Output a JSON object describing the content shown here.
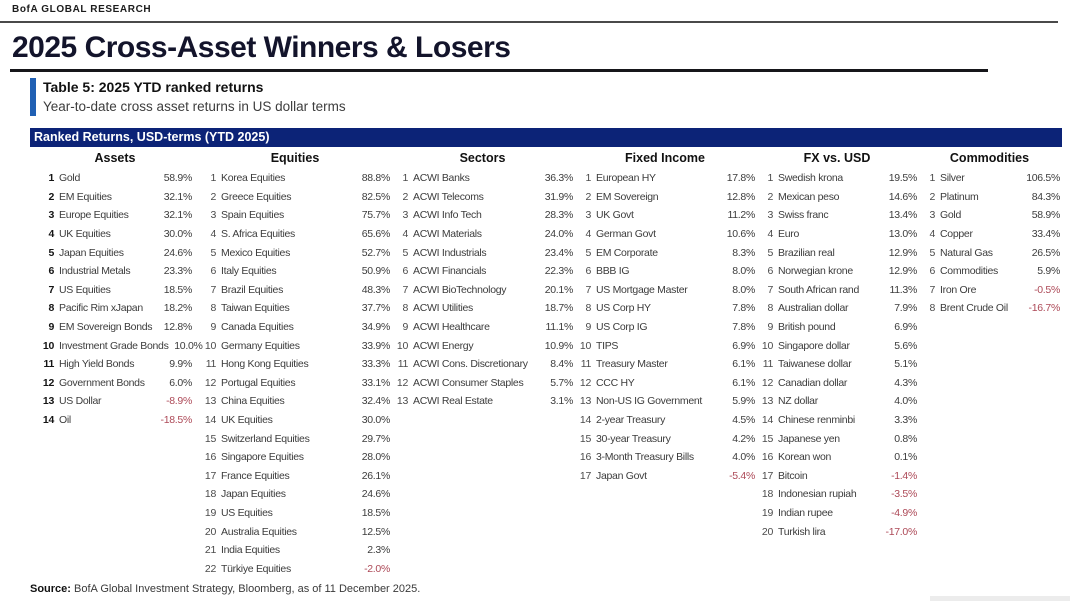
{
  "header": {
    "brand": "BofA GLOBAL RESEARCH",
    "title": "2025 Cross-Asset Winners & Losers"
  },
  "caption": {
    "title": "Table 5: 2025 YTD ranked returns",
    "subtitle": "Year-to-date cross asset returns in US dollar terms"
  },
  "table": {
    "banner": "Ranked Returns, USD-terms (YTD 2025)",
    "columns": [
      {
        "header": "Assets",
        "rows": [
          {
            "rank": 1,
            "name": "Gold",
            "value": "58.9%"
          },
          {
            "rank": 2,
            "name": "EM Equities",
            "value": "32.1%"
          },
          {
            "rank": 3,
            "name": "Europe Equities",
            "value": "32.1%"
          },
          {
            "rank": 4,
            "name": "UK Equities",
            "value": "30.0%"
          },
          {
            "rank": 5,
            "name": "Japan Equities",
            "value": "24.6%"
          },
          {
            "rank": 6,
            "name": "Industrial Metals",
            "value": "23.3%"
          },
          {
            "rank": 7,
            "name": "US Equities",
            "value": "18.5%"
          },
          {
            "rank": 8,
            "name": "Pacific Rim xJapan",
            "value": "18.2%"
          },
          {
            "rank": 9,
            "name": "EM Sovereign Bonds",
            "value": "12.8%"
          },
          {
            "rank": 10,
            "name": "Investment Grade Bonds",
            "value": "10.0%"
          },
          {
            "rank": 11,
            "name": "High Yield Bonds",
            "value": "9.9%"
          },
          {
            "rank": 12,
            "name": "Government Bonds",
            "value": "6.0%"
          },
          {
            "rank": 13,
            "name": "US Dollar",
            "value": "-8.9%"
          },
          {
            "rank": 14,
            "name": "Oil",
            "value": "-18.5%"
          }
        ]
      },
      {
        "header": "Equities",
        "rows": [
          {
            "rank": 1,
            "name": "Korea Equities",
            "value": "88.8%"
          },
          {
            "rank": 2,
            "name": "Greece Equities",
            "value": "82.5%"
          },
          {
            "rank": 3,
            "name": "Spain Equities",
            "value": "75.7%"
          },
          {
            "rank": 4,
            "name": "S. Africa Equities",
            "value": "65.6%"
          },
          {
            "rank": 5,
            "name": "Mexico Equities",
            "value": "52.7%"
          },
          {
            "rank": 6,
            "name": "Italy Equities",
            "value": "50.9%"
          },
          {
            "rank": 7,
            "name": "Brazil Equities",
            "value": "48.3%"
          },
          {
            "rank": 8,
            "name": "Taiwan Equities",
            "value": "37.7%"
          },
          {
            "rank": 9,
            "name": "Canada Equities",
            "value": "34.9%"
          },
          {
            "rank": 10,
            "name": "Germany Equities",
            "value": "33.9%"
          },
          {
            "rank": 11,
            "name": "Hong Kong Equities",
            "value": "33.3%"
          },
          {
            "rank": 12,
            "name": "Portugal Equities",
            "value": "33.1%"
          },
          {
            "rank": 13,
            "name": "China Equities",
            "value": "32.4%"
          },
          {
            "rank": 14,
            "name": "UK Equities",
            "value": "30.0%"
          },
          {
            "rank": 15,
            "name": "Switzerland Equities",
            "value": "29.7%"
          },
          {
            "rank": 16,
            "name": "Singapore Equities",
            "value": "28.0%"
          },
          {
            "rank": 17,
            "name": "France Equities",
            "value": "26.1%"
          },
          {
            "rank": 18,
            "name": "Japan Equities",
            "value": "24.6%"
          },
          {
            "rank": 19,
            "name": "US Equities",
            "value": "18.5%"
          },
          {
            "rank": 20,
            "name": "Australia Equities",
            "value": "12.5%"
          },
          {
            "rank": 21,
            "name": "India Equities",
            "value": "2.3%"
          },
          {
            "rank": 22,
            "name": "Türkiye Equities",
            "value": "-2.0%"
          }
        ]
      },
      {
        "header": "Sectors",
        "rows": [
          {
            "rank": 1,
            "name": "ACWI Banks",
            "value": "36.3%"
          },
          {
            "rank": 2,
            "name": "ACWI Telecoms",
            "value": "31.9%"
          },
          {
            "rank": 3,
            "name": "ACWI Info Tech",
            "value": "28.3%"
          },
          {
            "rank": 4,
            "name": "ACWI Materials",
            "value": "24.0%"
          },
          {
            "rank": 5,
            "name": "ACWI Industrials",
            "value": "23.4%"
          },
          {
            "rank": 6,
            "name": "ACWI Financials",
            "value": "22.3%"
          },
          {
            "rank": 7,
            "name": "ACWI BioTechnology",
            "value": "20.1%"
          },
          {
            "rank": 8,
            "name": "ACWI Utilities",
            "value": "18.7%"
          },
          {
            "rank": 9,
            "name": "ACWI Healthcare",
            "value": "11.1%"
          },
          {
            "rank": 10,
            "name": "ACWI Energy",
            "value": "10.9%"
          },
          {
            "rank": 11,
            "name": "ACWI Cons. Discretionary",
            "value": "8.4%"
          },
          {
            "rank": 12,
            "name": "ACWI Consumer Staples",
            "value": "5.7%"
          },
          {
            "rank": 13,
            "name": "ACWI Real Estate",
            "value": "3.1%"
          }
        ]
      },
      {
        "header": "Fixed Income",
        "rows": [
          {
            "rank": 1,
            "name": "European HY",
            "value": "17.8%"
          },
          {
            "rank": 2,
            "name": "EM Sovereign",
            "value": "12.8%"
          },
          {
            "rank": 3,
            "name": "UK Govt",
            "value": "11.2%"
          },
          {
            "rank": 4,
            "name": "German Govt",
            "value": "10.6%"
          },
          {
            "rank": 5,
            "name": "EM Corporate",
            "value": "8.3%"
          },
          {
            "rank": 6,
            "name": "BBB IG",
            "value": "8.0%"
          },
          {
            "rank": 7,
            "name": "US Mortgage Master",
            "value": "8.0%"
          },
          {
            "rank": 8,
            "name": "US Corp HY",
            "value": "7.8%"
          },
          {
            "rank": 9,
            "name": "US Corp IG",
            "value": "7.8%"
          },
          {
            "rank": 10,
            "name": "TIPS",
            "value": "6.9%"
          },
          {
            "rank": 11,
            "name": "Treasury Master",
            "value": "6.1%"
          },
          {
            "rank": 12,
            "name": "CCC HY",
            "value": "6.1%"
          },
          {
            "rank": 13,
            "name": "Non-US IG Government",
            "value": "5.9%"
          },
          {
            "rank": 14,
            "name": "2-year Treasury",
            "value": "4.5%"
          },
          {
            "rank": 15,
            "name": "30-year Treasury",
            "value": "4.2%"
          },
          {
            "rank": 16,
            "name": "3-Month Treasury Bills",
            "value": "4.0%"
          },
          {
            "rank": 17,
            "name": "Japan Govt",
            "value": "-5.4%"
          }
        ]
      },
      {
        "header": "FX vs. USD",
        "rows": [
          {
            "rank": 1,
            "name": "Swedish krona",
            "value": "19.5%"
          },
          {
            "rank": 2,
            "name": "Mexican peso",
            "value": "14.6%"
          },
          {
            "rank": 3,
            "name": "Swiss franc",
            "value": "13.4%"
          },
          {
            "rank": 4,
            "name": "Euro",
            "value": "13.0%"
          },
          {
            "rank": 5,
            "name": "Brazilian real",
            "value": "12.9%"
          },
          {
            "rank": 6,
            "name": "Norwegian krone",
            "value": "12.9%"
          },
          {
            "rank": 7,
            "name": "South African rand",
            "value": "11.3%"
          },
          {
            "rank": 8,
            "name": "Australian dollar",
            "value": "7.9%"
          },
          {
            "rank": 9,
            "name": "British pound",
            "value": "6.9%"
          },
          {
            "rank": 10,
            "name": "Singapore dollar",
            "value": "5.6%"
          },
          {
            "rank": 11,
            "name": "Taiwanese dollar",
            "value": "5.1%"
          },
          {
            "rank": 12,
            "name": "Canadian dollar",
            "value": "4.3%"
          },
          {
            "rank": 13,
            "name": "NZ dollar",
            "value": "4.0%"
          },
          {
            "rank": 14,
            "name": "Chinese renminbi",
            "value": "3.3%"
          },
          {
            "rank": 15,
            "name": "Japanese yen",
            "value": "0.8%"
          },
          {
            "rank": 16,
            "name": "Korean won",
            "value": "0.1%"
          },
          {
            "rank": 17,
            "name": "Bitcoin",
            "value": "-1.4%"
          },
          {
            "rank": 18,
            "name": "Indonesian rupiah",
            "value": "-3.5%"
          },
          {
            "rank": 19,
            "name": "Indian rupee",
            "value": "-4.9%"
          },
          {
            "rank": 20,
            "name": "Turkish lira",
            "value": "-17.0%"
          }
        ]
      },
      {
        "header": "Commodities",
        "rows": [
          {
            "rank": 1,
            "name": "Silver",
            "value": "106.5%"
          },
          {
            "rank": 2,
            "name": "Platinum",
            "value": "84.3%"
          },
          {
            "rank": 3,
            "name": "Gold",
            "value": "58.9%"
          },
          {
            "rank": 4,
            "name": "Copper",
            "value": "33.4%"
          },
          {
            "rank": 5,
            "name": "Natural Gas",
            "value": "26.5%"
          },
          {
            "rank": 6,
            "name": "Commodities",
            "value": "5.9%"
          },
          {
            "rank": 7,
            "name": "Iron Ore",
            "value": "-0.5%"
          },
          {
            "rank": 8,
            "name": "Brent Crude Oil",
            "value": "-16.7%"
          }
        ]
      }
    ]
  },
  "footer": {
    "source_label": "Source:",
    "source_text": " BofA Global Investment Strategy, Bloomberg, as of 11 December 2025."
  },
  "colors": {
    "banner_navy": "#0c2377",
    "accent_blue": "#2060b4",
    "negative_red": "#ad4957"
  }
}
